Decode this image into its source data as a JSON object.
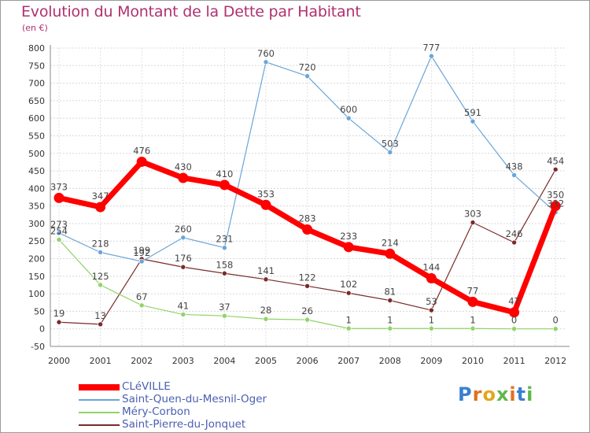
{
  "title": "Evolution du Montant de la Dette par Habitant",
  "subtitle": "(en €)",
  "brand": {
    "letters": [
      "P",
      "r",
      "o",
      "x",
      "i",
      "t",
      "i"
    ],
    "colors": [
      "#3a7fd0",
      "#e0711f",
      "#e0a81f",
      "#5fb84a",
      "#e0711f",
      "#3a7fd0",
      "#5fb84a"
    ]
  },
  "chart_data": {
    "type": "line",
    "x": [
      "2000",
      "2001",
      "2002",
      "2003",
      "2004",
      "2005",
      "2006",
      "2007",
      "2008",
      "2009",
      "2010",
      "2011",
      "2012"
    ],
    "ylim": [
      -50,
      800
    ],
    "yticks": [
      -50,
      0,
      50,
      100,
      150,
      200,
      250,
      300,
      350,
      400,
      450,
      500,
      550,
      600,
      650,
      700,
      750,
      800
    ],
    "grid": true,
    "legend_position": "bottom-left",
    "series": [
      {
        "name": "CLéVILLE",
        "color": "#ff0000",
        "width": 7,
        "values": [
          373,
          347,
          476,
          430,
          410,
          353,
          283,
          233,
          214,
          144,
          77,
          47,
          350
        ]
      },
      {
        "name": "Saint-Quen-du-Mesnil-Oger",
        "color": "#6aa5d8",
        "width": 1.2,
        "values": [
          273,
          218,
          192,
          260,
          231,
          760,
          720,
          600,
          503,
          777,
          591,
          438,
          332
        ]
      },
      {
        "name": "Méry-Corbon",
        "color": "#8fd468",
        "width": 1.2,
        "values": [
          254,
          125,
          67,
          41,
          37,
          28,
          26,
          1,
          1,
          1,
          1,
          0,
          0
        ]
      },
      {
        "name": "Saint-Pierre-du-Jonquet",
        "color": "#7a2a2a",
        "width": 1.2,
        "values": [
          19,
          13,
          199,
          176,
          158,
          141,
          122,
          102,
          81,
          53,
          303,
          246,
          454
        ]
      }
    ]
  }
}
